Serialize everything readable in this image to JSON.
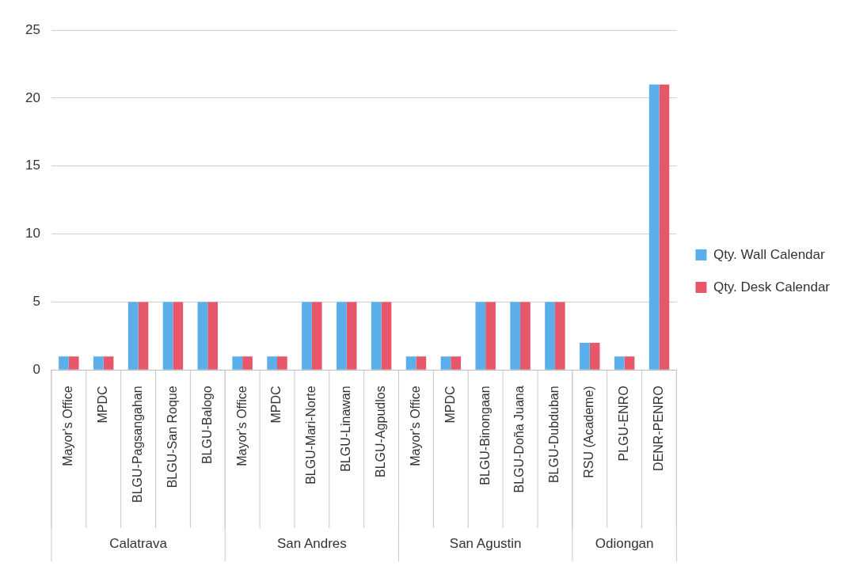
{
  "chart_data": {
    "type": "bar",
    "categories": [
      "Mayor's Office",
      "MPDC",
      "BLGU-Pagsangahan",
      "BLGU-San Roque",
      "BLGU-Balogo",
      "Mayor's Office",
      "MPDC",
      "BLGU-Mari-Norte",
      "BLGU-Linawan",
      "BLGU-Agpudlos",
      "Mayor's Office",
      "MPDC",
      "BLGU-Binongaan",
      "BLGU-Doña Juana",
      "BLGU-Dubduban",
      "RSU (Academe)",
      "PLGU-ENRO",
      "DENR-PENRO"
    ],
    "series": [
      {
        "name": "Qty. Wall Calendar",
        "color": "#5aaeea",
        "values": [
          1,
          1,
          5,
          5,
          5,
          1,
          1,
          5,
          5,
          5,
          1,
          1,
          5,
          5,
          5,
          2,
          1,
          21
        ]
      },
      {
        "name": "Qty. Desk Calendar",
        "color": "#e8566a",
        "values": [
          1,
          1,
          5,
          5,
          5,
          1,
          1,
          5,
          5,
          5,
          1,
          1,
          5,
          5,
          5,
          2,
          1,
          21
        ]
      }
    ],
    "annotations": [
      "Calatrava",
      "San Andres",
      "San Agustin",
      "Odiongan"
    ],
    "ylim": [
      0,
      25
    ],
    "yticks": [
      0,
      5,
      10,
      15,
      20,
      25
    ],
    "grid": "y",
    "legend": "right"
  }
}
